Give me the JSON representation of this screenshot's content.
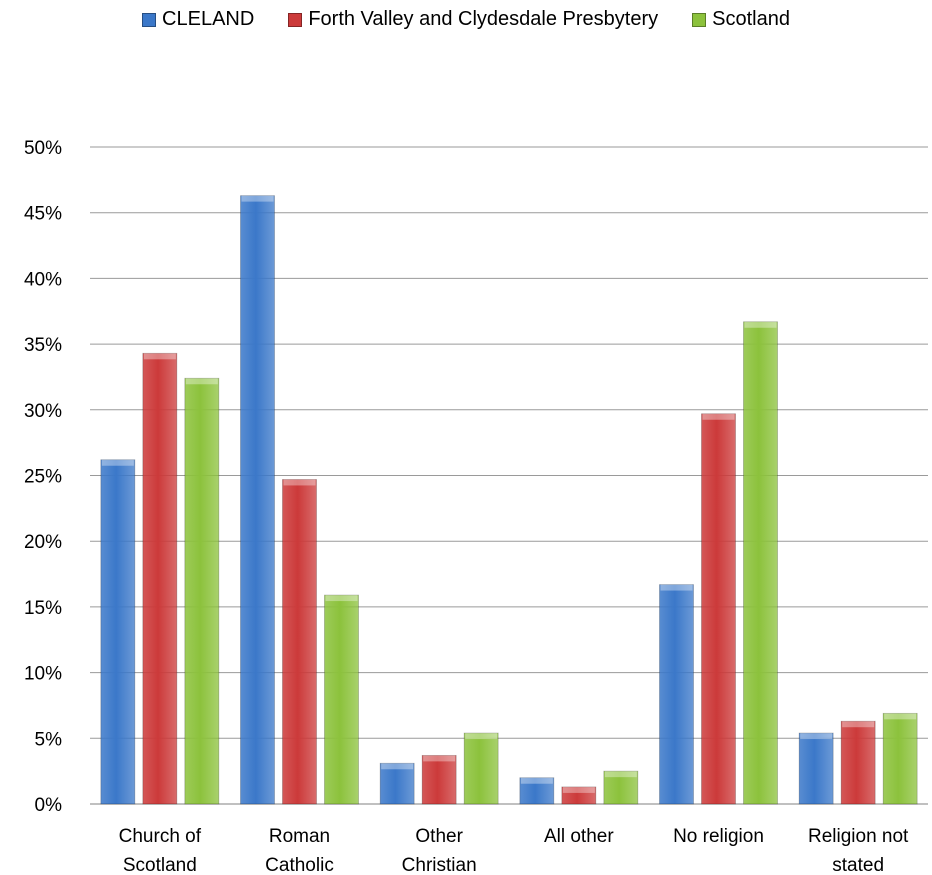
{
  "chart_data": {
    "type": "bar",
    "categories": [
      [
        "Church of",
        "Scotland"
      ],
      [
        "Roman",
        "Catholic"
      ],
      [
        "Other",
        "Christian"
      ],
      [
        "All other"
      ],
      [
        "No religion"
      ],
      [
        "Religion not",
        "stated"
      ]
    ],
    "series": [
      {
        "name": "CLELAND",
        "color": "#3b78c9",
        "values": [
          26.2,
          46.3,
          3.1,
          2.0,
          16.7,
          5.4
        ]
      },
      {
        "name": "Forth Valley and Clydesdale Presbytery",
        "color": "#cc3a3a",
        "values": [
          34.3,
          24.7,
          3.7,
          1.3,
          29.7,
          6.3
        ]
      },
      {
        "name": "Scotland",
        "color": "#8cc23c",
        "values": [
          32.4,
          15.9,
          5.4,
          2.5,
          36.7,
          6.9
        ]
      }
    ],
    "ylim": [
      0,
      50
    ],
    "yticks": [
      "0%",
      "5%",
      "10%",
      "15%",
      "20%",
      "25%",
      "30%",
      "35%",
      "40%",
      "45%",
      "50%"
    ],
    "grid": true,
    "legend_position": "top"
  }
}
